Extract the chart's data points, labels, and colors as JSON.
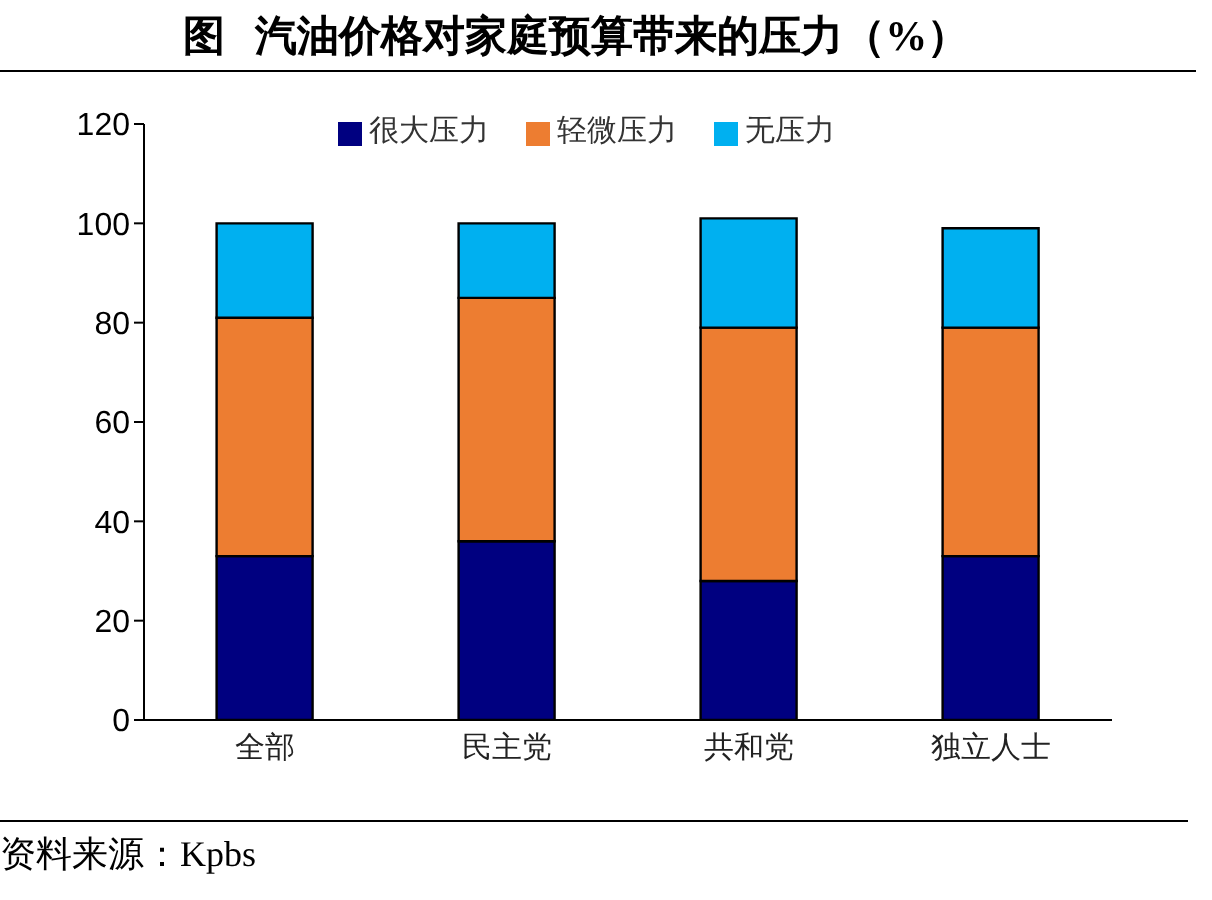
{
  "chart_data": {
    "type": "bar",
    "title": "图 汽油价格对家庭预算带来的压力（%）",
    "categories": [
      "全部",
      "民主党",
      "共和党",
      "独立人士"
    ],
    "series": [
      {
        "name": "很大压力",
        "color": "#000080",
        "values": [
          33,
          36,
          28,
          33
        ]
      },
      {
        "name": "轻微压力",
        "color": "#ed7d31",
        "values": [
          48,
          49,
          51,
          46
        ]
      },
      {
        "name": "无压力",
        "color": "#00b0f0",
        "values": [
          19,
          15,
          22,
          20
        ]
      }
    ],
    "stacked": true,
    "ylim": [
      0,
      120
    ],
    "yticks": [
      0,
      20,
      40,
      60,
      80,
      100,
      120
    ],
    "legend": "top",
    "annotations": [
      "资料来源：Kpbs"
    ]
  }
}
